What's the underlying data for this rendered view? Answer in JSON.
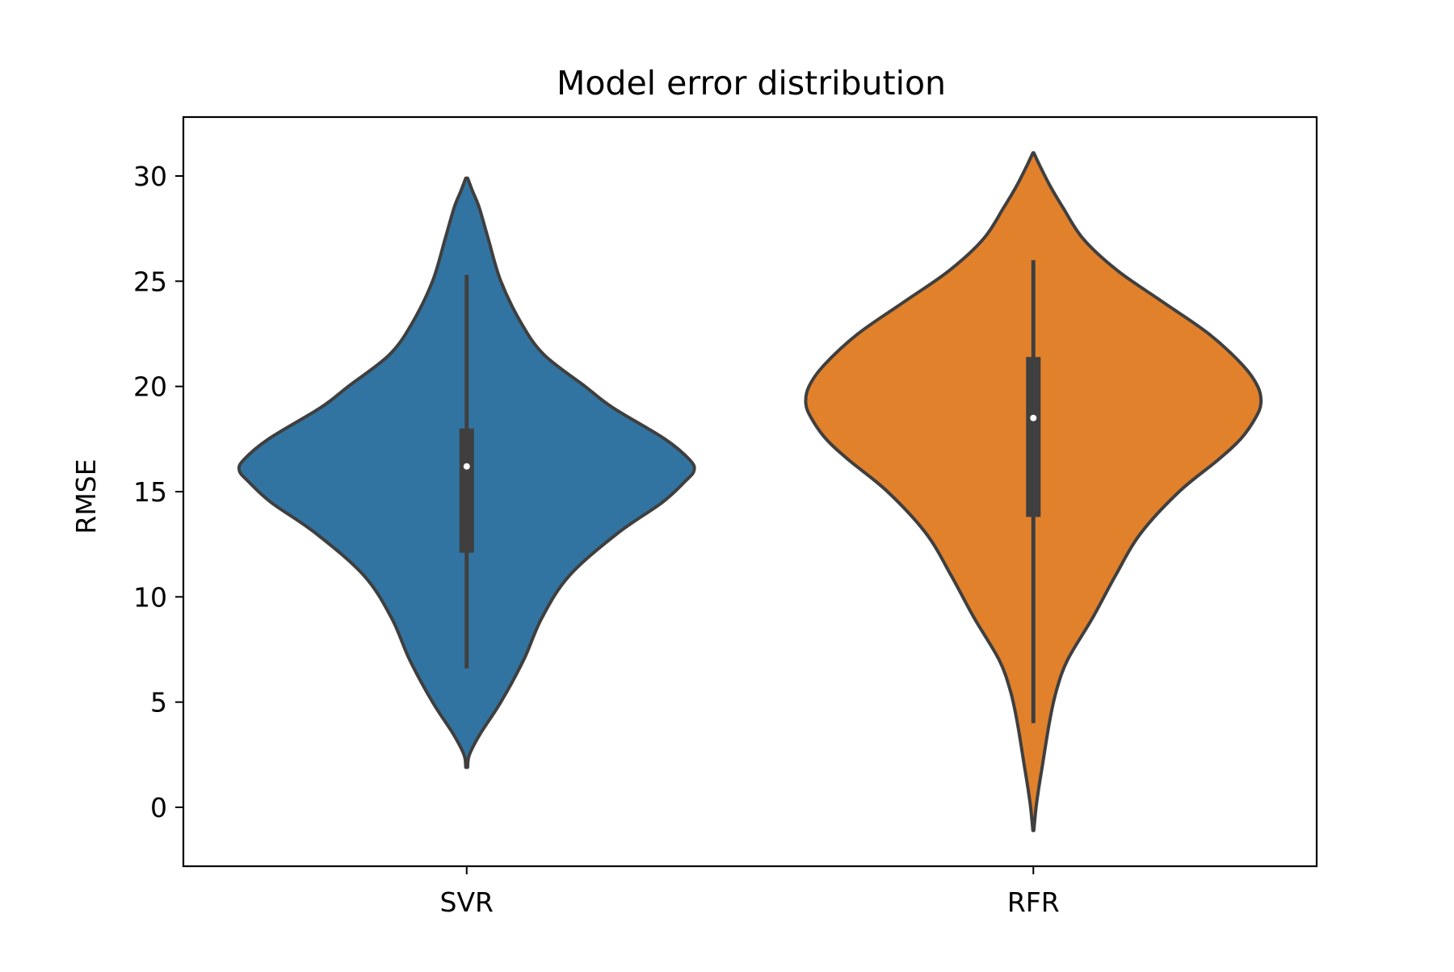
{
  "chart_data": {
    "type": "violin",
    "title": "Model error distribution",
    "xlabel": "",
    "ylabel": "RMSE",
    "ylim": [
      -2.8,
      32.8
    ],
    "yticks": [
      0,
      5,
      10,
      15,
      20,
      25,
      30
    ],
    "grid": false,
    "legend": "none",
    "categories": [
      "SVR",
      "RFR"
    ],
    "colors": {
      "SVR": "#3274a1",
      "RFR": "#e1812c",
      "outline": "#3f3f3f",
      "median": "#ffffff",
      "axes": "#000000"
    },
    "series": [
      {
        "name": "SVR",
        "color": "#3274a1",
        "min": 1.9,
        "max": 29.9,
        "q1": 12.1,
        "median": 16.2,
        "q3": 18.0,
        "whisker_low": 6.6,
        "whisker_high": 25.3,
        "density": [
          [
            1.9,
            0.004
          ],
          [
            2.5,
            0.012
          ],
          [
            3.5,
            0.06
          ],
          [
            5.0,
            0.15
          ],
          [
            7.0,
            0.25
          ],
          [
            9.0,
            0.33
          ],
          [
            11.0,
            0.45
          ],
          [
            13.0,
            0.66
          ],
          [
            14.5,
            0.86
          ],
          [
            15.5,
            0.96
          ],
          [
            16.0,
            0.998
          ],
          [
            16.5,
            0.98
          ],
          [
            17.5,
            0.87
          ],
          [
            19.0,
            0.64
          ],
          [
            20.0,
            0.52
          ],
          [
            21.5,
            0.34
          ],
          [
            23.0,
            0.24
          ],
          [
            25.0,
            0.15
          ],
          [
            27.0,
            0.095
          ],
          [
            28.5,
            0.055
          ],
          [
            29.3,
            0.025
          ],
          [
            29.9,
            0.004
          ]
        ]
      },
      {
        "name": "RFR",
        "color": "#e1812c",
        "min": -1.1,
        "max": 31.1,
        "q1": 13.8,
        "median": 18.5,
        "q3": 21.4,
        "whisker_low": 4.0,
        "whisker_high": 26.0,
        "density": [
          [
            -1.1,
            0.002
          ],
          [
            0.0,
            0.012
          ],
          [
            1.0,
            0.025
          ],
          [
            2.0,
            0.04
          ],
          [
            4.0,
            0.07
          ],
          [
            5.5,
            0.1
          ],
          [
            7.0,
            0.15
          ],
          [
            9.0,
            0.26
          ],
          [
            11.0,
            0.36
          ],
          [
            13.0,
            0.47
          ],
          [
            15.0,
            0.64
          ],
          [
            16.5,
            0.81
          ],
          [
            17.5,
            0.91
          ],
          [
            18.5,
            0.975
          ],
          [
            19.2,
            0.999
          ],
          [
            20.0,
            0.985
          ],
          [
            21.0,
            0.92
          ],
          [
            22.5,
            0.77
          ],
          [
            24.0,
            0.57
          ],
          [
            25.5,
            0.37
          ],
          [
            27.0,
            0.22
          ],
          [
            28.5,
            0.13
          ],
          [
            29.5,
            0.075
          ],
          [
            30.5,
            0.028
          ],
          [
            31.1,
            0.002
          ]
        ]
      }
    ]
  }
}
